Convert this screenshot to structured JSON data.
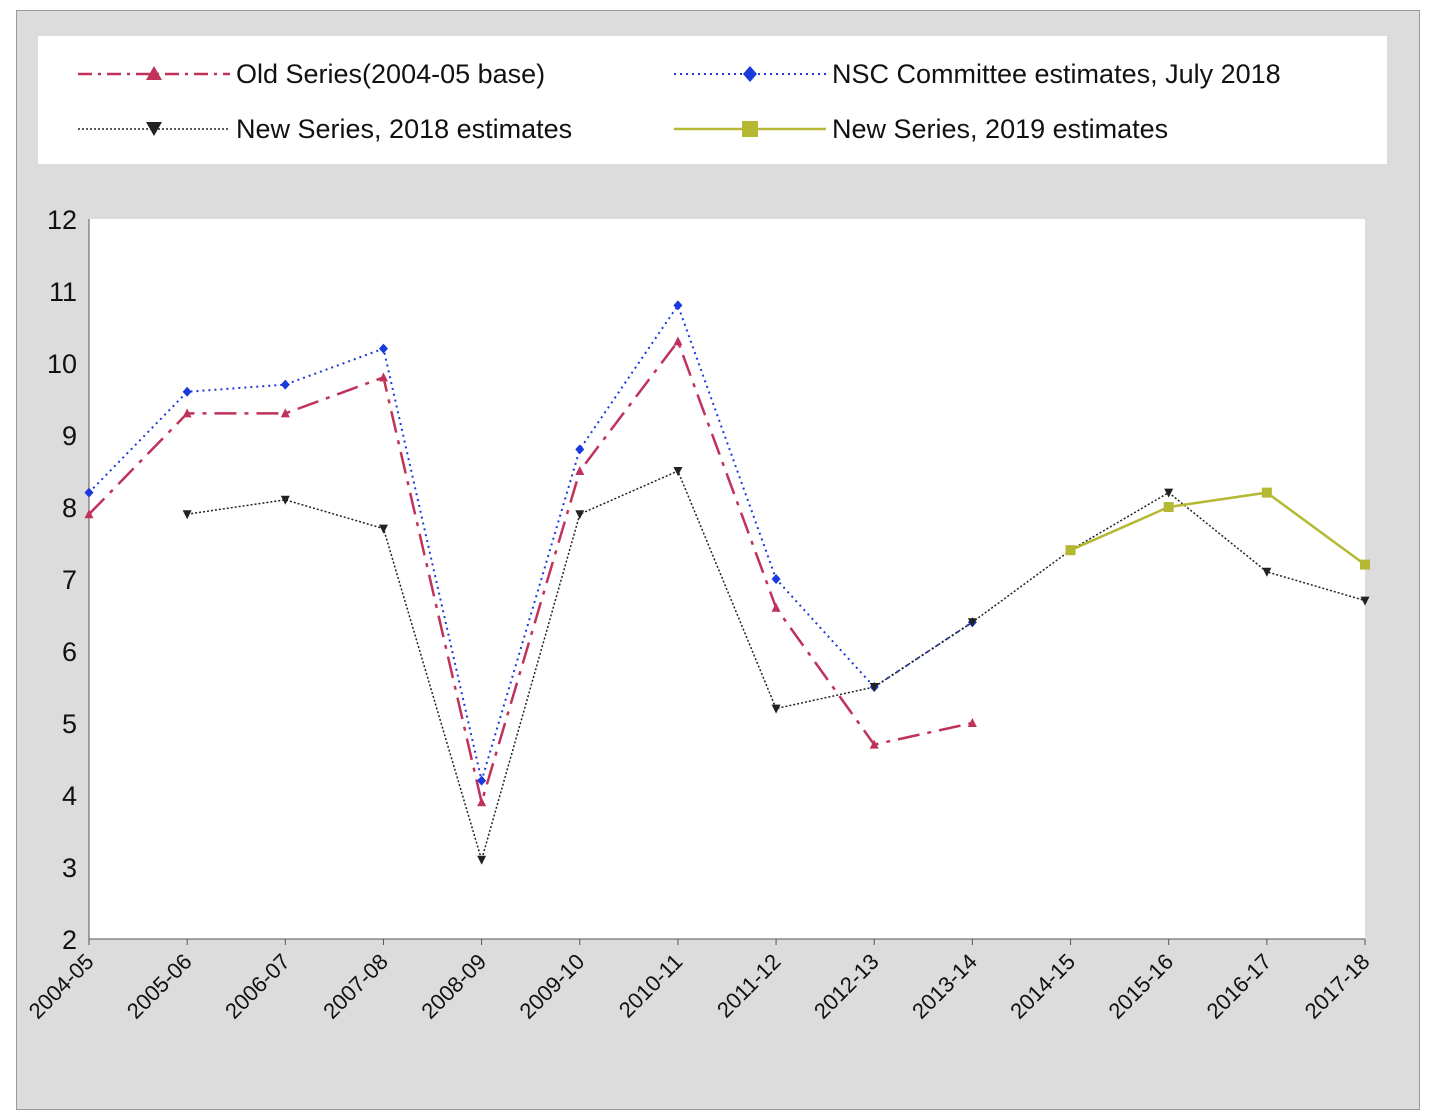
{
  "chart_data": {
    "type": "line",
    "categories": [
      "2004-05",
      "2005-06",
      "2006-07",
      "2007-08",
      "2008-09",
      "2009-10",
      "2010-11",
      "2011-12",
      "2012-13",
      "2013-14",
      "2014-15",
      "2015-16",
      "2016-17",
      "2017-18"
    ],
    "ylim": [
      2,
      12
    ],
    "yticks": [
      2,
      3,
      4,
      5,
      6,
      7,
      8,
      9,
      10,
      11,
      12
    ],
    "grid": false,
    "legend_position": "top",
    "series": [
      {
        "name": "Old Series(2004-05 base)",
        "color": "#c0325a",
        "line_style": "dash-dot",
        "marker": "triangle-up",
        "values": [
          7.9,
          9.3,
          9.3,
          9.8,
          3.9,
          8.5,
          10.3,
          6.6,
          4.7,
          5.0,
          null,
          null,
          null,
          null
        ]
      },
      {
        "name": "NSC Committee estimates, July 2018",
        "color": "#1a3adc",
        "line_style": "dotted",
        "marker": "diamond",
        "values": [
          8.2,
          9.6,
          9.7,
          10.2,
          4.2,
          8.8,
          10.8,
          7.0,
          5.5,
          6.4,
          null,
          null,
          null,
          null
        ]
      },
      {
        "name": "New Series, 2018 estimates",
        "color": "#222222",
        "line_style": "fine-dotted",
        "marker": "triangle-down",
        "values": [
          null,
          7.9,
          8.1,
          7.7,
          3.1,
          7.9,
          8.5,
          5.2,
          5.5,
          6.4,
          7.4,
          8.2,
          7.1,
          6.7
        ]
      },
      {
        "name": "New Series, 2019 estimates",
        "color": "#b5b832",
        "line_style": "solid",
        "marker": "square",
        "values": [
          null,
          null,
          null,
          null,
          null,
          null,
          null,
          null,
          null,
          null,
          7.4,
          8.0,
          8.2,
          7.2
        ]
      }
    ]
  }
}
